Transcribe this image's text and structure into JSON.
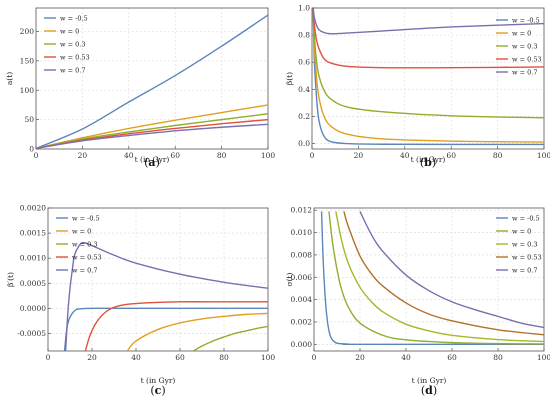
{
  "chart_data": [
    {
      "id": "a",
      "type": "line",
      "caption": "a",
      "xlabel": "t (in Gyr)",
      "ylabel": "a(t)",
      "xlim": [
        0,
        100
      ],
      "ylim": [
        0,
        240
      ],
      "xticks": [
        0,
        20,
        40,
        60,
        80,
        100
      ],
      "yticks": [
        0,
        50,
        100,
        150,
        200
      ],
      "grid": true,
      "legend": "top-left",
      "series": [
        {
          "name": "w = -0.5",
          "color": "#5b86b9",
          "x": [
            0,
            20,
            40,
            60,
            80,
            100
          ],
          "y": [
            1,
            34,
            80,
            125,
            175,
            228
          ]
        },
        {
          "name": "w = 0",
          "color": "#e0a020",
          "x": [
            0,
            20,
            40,
            60,
            80,
            100
          ],
          "y": [
            1,
            19,
            35,
            49,
            62,
            75
          ]
        },
        {
          "name": "w = 0.3",
          "color": "#8fae2c",
          "x": [
            0,
            20,
            40,
            60,
            80,
            100
          ],
          "y": [
            1,
            17,
            29,
            40,
            50,
            60
          ]
        },
        {
          "name": "w = 0.53",
          "color": "#e0503c",
          "x": [
            0,
            20,
            40,
            60,
            80,
            100
          ],
          "y": [
            1,
            15,
            26,
            35,
            43,
            50
          ]
        },
        {
          "name": "w = 0.7",
          "color": "#7a6fae",
          "x": [
            0,
            20,
            40,
            60,
            80,
            100
          ],
          "y": [
            1,
            14,
            23,
            31,
            37,
            42
          ]
        }
      ]
    },
    {
      "id": "b",
      "type": "line",
      "caption": "b",
      "xlabel": "t (in Gyr)",
      "ylabel": "β(t)",
      "xlim": [
        0,
        100
      ],
      "ylim": [
        -0.04,
        1.0
      ],
      "xticks": [
        0,
        20,
        40,
        60,
        80,
        100
      ],
      "yticks": [
        0.0,
        0.2,
        0.4,
        0.6,
        0.8,
        1.0
      ],
      "grid": true,
      "legend": "right",
      "series": [
        {
          "name": "w = -0.5",
          "color": "#5b86b9",
          "x": [
            0.5,
            1,
            2,
            3,
            5,
            8,
            15,
            30,
            60,
            100
          ],
          "y": [
            1.0,
            0.62,
            0.33,
            0.17,
            0.06,
            0.015,
            0.0,
            -0.005,
            -0.006,
            -0.006
          ]
        },
        {
          "name": "w = 0",
          "color": "#e0a020",
          "x": [
            0.5,
            1,
            2,
            3,
            5,
            8,
            15,
            30,
            60,
            100
          ],
          "y": [
            1.0,
            0.72,
            0.48,
            0.34,
            0.21,
            0.13,
            0.07,
            0.035,
            0.018,
            0.011
          ]
        },
        {
          "name": "w = 0.3",
          "color": "#8fae2c",
          "x": [
            0.5,
            1,
            2,
            3,
            5,
            8,
            15,
            30,
            60,
            100
          ],
          "y": [
            1.0,
            0.8,
            0.6,
            0.5,
            0.4,
            0.33,
            0.27,
            0.235,
            0.205,
            0.19
          ]
        },
        {
          "name": "w = 0.53",
          "color": "#e0503c",
          "x": [
            0.5,
            1,
            2,
            3,
            5,
            8,
            15,
            30,
            60,
            100
          ],
          "y": [
            1.0,
            0.88,
            0.76,
            0.7,
            0.63,
            0.595,
            0.57,
            0.56,
            0.56,
            0.565
          ]
        },
        {
          "name": "w = 0.7",
          "color": "#7a6fae",
          "x": [
            0.5,
            1,
            2,
            3,
            5,
            8,
            15,
            30,
            60,
            100
          ],
          "y": [
            1.0,
            0.93,
            0.87,
            0.84,
            0.82,
            0.81,
            0.815,
            0.83,
            0.86,
            0.885
          ]
        }
      ]
    },
    {
      "id": "c",
      "type": "line",
      "caption": "c",
      "xlabel": "t (in Gyr)",
      "ylabel": "β′(t)",
      "xlim": [
        0,
        100
      ],
      "ylim": [
        -0.00085,
        0.002
      ],
      "xticks": [
        0,
        20,
        40,
        60,
        80,
        100
      ],
      "yticks": [
        "-0.0005",
        "0.0000",
        "0.0005",
        "0.0010",
        "0.0015",
        "0.0020"
      ],
      "grid": true,
      "legend": "top-left",
      "series": [
        {
          "name": "w = -0.5",
          "color": "#5b86b9",
          "x": [
            7.5,
            9,
            12,
            16,
            25,
            40,
            60,
            100
          ],
          "y": [
            -0.00085,
            -0.0003,
            -5e-05,
            -5e-06,
            0.0,
            0.0,
            0.0,
            0.0
          ]
        },
        {
          "name": "w = 0",
          "color": "#e0a020",
          "x": [
            36,
            40,
            50,
            60,
            70,
            80,
            90,
            100
          ],
          "y": [
            -0.00085,
            -0.00065,
            -0.00042,
            -0.00029,
            -0.00021,
            -0.00016,
            -0.00012,
            -0.0001
          ]
        },
        {
          "name": "w = 0.3",
          "color": "#8fae2c",
          "x": [
            66,
            70,
            75,
            80,
            85,
            90,
            95,
            100
          ],
          "y": [
            -0.00085,
            -0.00075,
            -0.00065,
            -0.00057,
            -0.0005,
            -0.00045,
            -0.0004,
            -0.00036
          ]
        },
        {
          "name": "w = 0.53",
          "color": "#e0503c",
          "x": [
            17,
            19,
            22,
            26,
            30,
            36,
            45,
            60,
            80,
            100
          ],
          "y": [
            -0.00085,
            -0.00055,
            -0.00028,
            -8e-05,
            2e-05,
            8e-05,
            0.00011,
            0.00013,
            0.00013,
            0.00013
          ]
        },
        {
          "name": "w = 0.7",
          "color": "#7a6fae",
          "x": [
            8,
            9,
            10,
            11,
            12,
            14,
            16,
            20,
            30,
            40,
            60,
            80,
            100
          ],
          "y": [
            -0.00085,
            -0.0001,
            0.0004,
            0.00075,
            0.00105,
            0.00124,
            0.00131,
            0.00125,
            0.00106,
            0.0009,
            0.00068,
            0.00052,
            0.0004
          ]
        }
      ]
    },
    {
      "id": "d",
      "type": "line",
      "caption": "d",
      "xlabel": "t (in Gyr)",
      "ylabel": "σ(t)",
      "xlim": [
        0,
        100
      ],
      "ylim": [
        -0.0006,
        0.0122
      ],
      "xticks": [
        0,
        20,
        40,
        60,
        80,
        100
      ],
      "yticks": [
        "0.000",
        "0.002",
        "0.004",
        "0.006",
        "0.008",
        "0.010",
        "0.012"
      ],
      "grid": true,
      "legend": "right",
      "series": [
        {
          "name": "w = -0.5",
          "color": "#5b86b9",
          "x": [
            3.3,
            4,
            5,
            6,
            7,
            8,
            10,
            15,
            20,
            100
          ],
          "y": [
            0.0119,
            0.0075,
            0.0038,
            0.0018,
            0.0008,
            0.0004,
            0.0001,
            2e-05,
            0.0,
            0.0
          ]
        },
        {
          "name": "w = 0",
          "color": "#8fae2c",
          "x": [
            6.5,
            8,
            10,
            12,
            15,
            20,
            30,
            40,
            60,
            80,
            100
          ],
          "y": [
            0.0119,
            0.0092,
            0.0067,
            0.0049,
            0.0033,
            0.0019,
            0.0008,
            0.0004,
            0.00015,
            6e-05,
            3e-05
          ]
        },
        {
          "name": "w = 0.3",
          "color": "#a3b82a",
          "x": [
            9.5,
            12,
            15,
            20,
            25,
            30,
            40,
            50,
            60,
            80,
            100
          ],
          "y": [
            0.0119,
            0.0093,
            0.0072,
            0.0051,
            0.0038,
            0.0029,
            0.0018,
            0.0012,
            0.0008,
            0.00042,
            0.00025
          ]
        },
        {
          "name": "w = 0.53",
          "color": "#b3702c",
          "x": [
            13,
            15,
            20,
            25,
            30,
            40,
            50,
            60,
            80,
            100
          ],
          "y": [
            0.0119,
            0.0105,
            0.0079,
            0.0063,
            0.0052,
            0.0037,
            0.0027,
            0.0021,
            0.0013,
            0.00085
          ]
        },
        {
          "name": "w = 0.7",
          "color": "#7a6fae",
          "x": [
            20,
            25,
            30,
            40,
            50,
            60,
            70,
            80,
            90,
            100
          ],
          "y": [
            0.0119,
            0.0098,
            0.0083,
            0.0062,
            0.0048,
            0.0038,
            0.0031,
            0.0025,
            0.0019,
            0.0015
          ]
        }
      ]
    }
  ]
}
